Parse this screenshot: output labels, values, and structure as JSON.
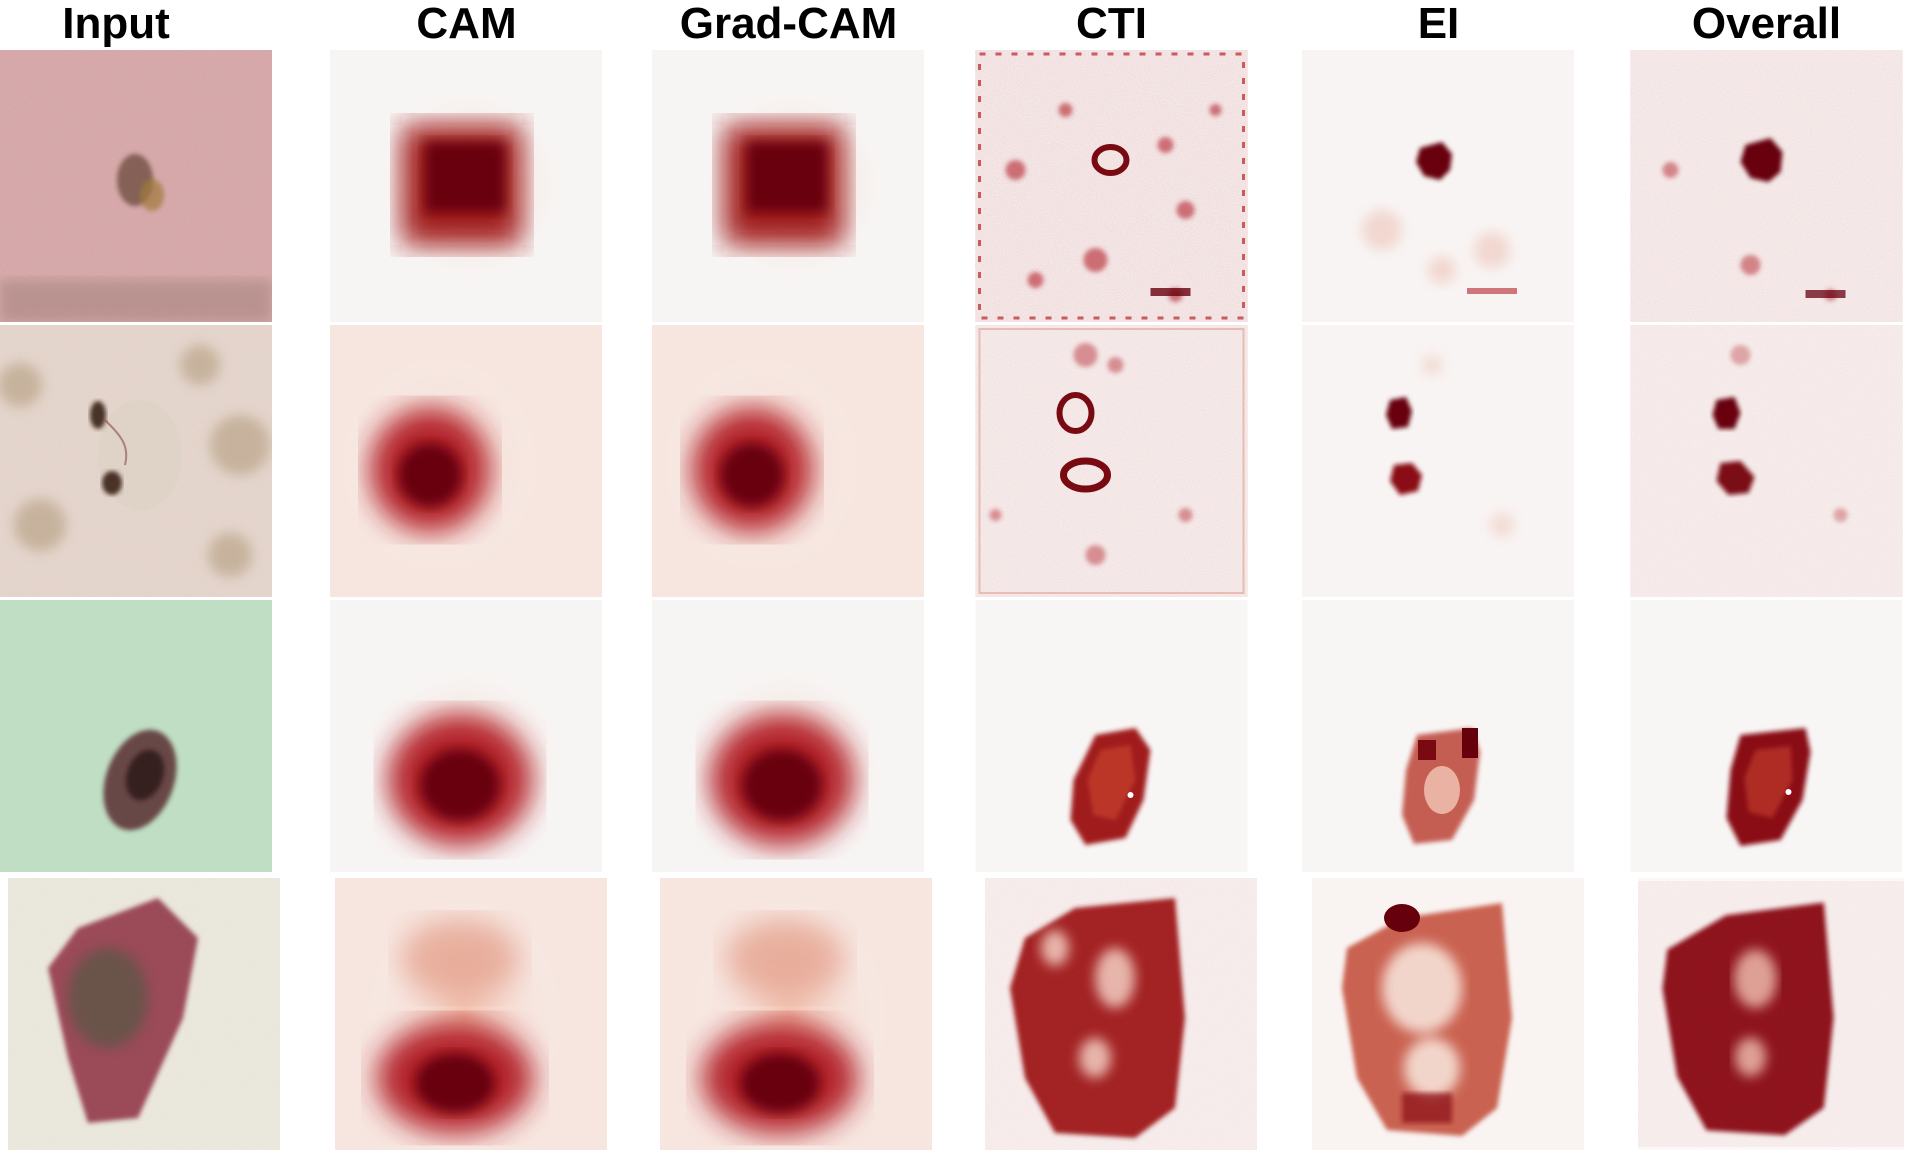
{
  "columns": [
    "Input",
    "CAM",
    "Grad-CAM",
    "CTI",
    "EI",
    "Overall"
  ],
  "rows": [
    {
      "skin": "#d8b2b0",
      "skin_edge": "#9e7f78",
      "lesion": "#6b4a3a"
    },
    {
      "skin": "#e6ddd2",
      "skin_edge": "#b49d7e",
      "lesion": "#4a3328"
    },
    {
      "skin": "#bfe3c6",
      "skin_edge": "#8fb59a",
      "lesion": "#5a2e30"
    },
    {
      "skin": "#eceee2",
      "skin_edge": "#c9cbbf",
      "lesion": "#8a2a3e"
    }
  ],
  "colors": {
    "heat_strong": "#67000d",
    "heat_mid": "#b3222a",
    "heat_faint": "#f3c3ae",
    "heat_background": "#f7f5f4"
  }
}
